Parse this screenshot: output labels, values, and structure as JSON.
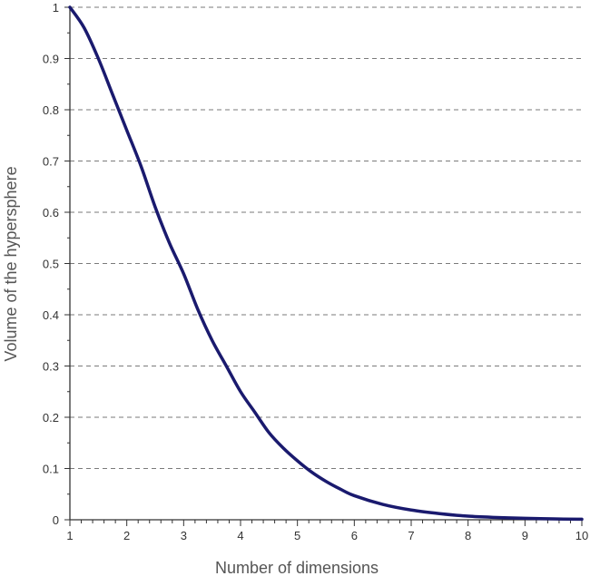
{
  "chart_data": {
    "type": "line",
    "title": "",
    "xlabel": "Number of dimensions",
    "ylabel": "Volume of the hypersphere",
    "xlim": [
      1,
      10
    ],
    "ylim": [
      0,
      1
    ],
    "x_ticks": [
      "1",
      "2",
      "3",
      "4",
      "5",
      "6",
      "7",
      "8",
      "9",
      "10"
    ],
    "y_ticks": [
      "0",
      "0.1",
      "0.2",
      "0.3",
      "0.4",
      "0.5",
      "0.6",
      "0.7",
      "0.8",
      "0.9",
      "1"
    ],
    "grid": "horizontal dashed",
    "line_color": "#1a1a6e",
    "series": [
      {
        "x": [
          1,
          1.25,
          1.5,
          1.75,
          2,
          2.25,
          2.5,
          2.75,
          3,
          3.25,
          3.5,
          3.75,
          4,
          4.25,
          4.5,
          4.75,
          5,
          5.25,
          5.5,
          5.75,
          6,
          6.5,
          7,
          7.5,
          8,
          8.5,
          9,
          9.5,
          10
        ],
        "values": [
          1.0,
          0.96,
          0.9,
          0.83,
          0.76,
          0.69,
          0.61,
          0.54,
          0.48,
          0.41,
          0.35,
          0.3,
          0.25,
          0.21,
          0.17,
          0.14,
          0.115,
          0.093,
          0.075,
          0.06,
          0.047,
          0.03,
          0.019,
          0.012,
          0.007,
          0.0045,
          0.0028,
          0.0017,
          0.001
        ]
      }
    ]
  }
}
